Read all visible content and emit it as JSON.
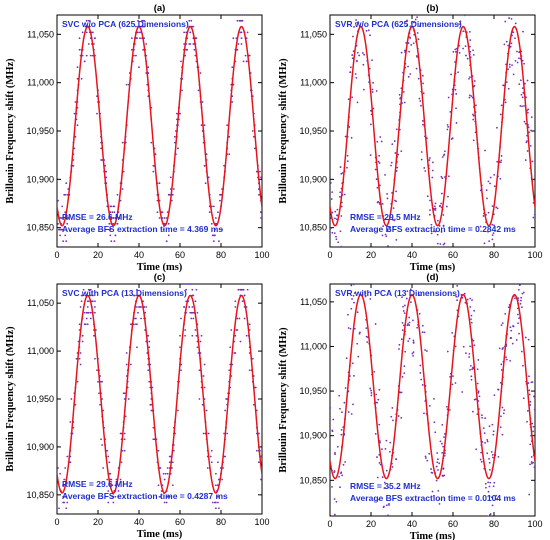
{
  "colors": {
    "fit_line": "#e8141c",
    "points": "#7b2fb8",
    "annotation_text": "#1f2fcf"
  },
  "chart_data": [
    {
      "type": "scatter",
      "panel_tag": "(a)",
      "title": "SVC w/o PCA (625 Dimensions)",
      "annotations": [
        "RMSE = 26.6 MHz",
        "Average BFS extraction time = 4.369 ms"
      ],
      "xlabel": "Time (ms)",
      "ylabel": "Brillouin Frequency shift (MHz)",
      "xlim": [
        0,
        100
      ],
      "ylim": [
        10830,
        11070
      ],
      "xticks": [
        "0",
        "20",
        "40",
        "60",
        "80",
        "100"
      ],
      "yticks": [
        "10,850",
        "10,900",
        "10,950",
        "11,000",
        "11,050"
      ],
      "series": [
        {
          "kind": "line",
          "description": "fitted sinusoid",
          "mean": 10955,
          "amplitude": 103,
          "period": 25,
          "peak_at": 15
        },
        {
          "kind": "scatter",
          "description": "estimated BFS points, quantized",
          "count": 500,
          "noise_mhz": 12
        }
      ]
    },
    {
      "type": "scatter",
      "panel_tag": "(b)",
      "title": "SVR w/o PCA (625 Dimensions)",
      "annotations": [
        "RMSE = 29.5 MHz",
        "Average BFS extraction time = 0.2842 ms"
      ],
      "xlabel": "Time (ms)",
      "ylabel": "Brillouin Frequency shift (MHz)",
      "xlim": [
        0,
        100
      ],
      "ylim": [
        10830,
        11070
      ],
      "xticks": [
        "0",
        "20",
        "40",
        "60",
        "80",
        "100"
      ],
      "yticks": [
        "10,850",
        "10,900",
        "10,950",
        "11,000",
        "11,050"
      ],
      "series": [
        {
          "kind": "line",
          "description": "fitted sinusoid",
          "mean": 10955,
          "amplitude": 103,
          "period": 25,
          "peak_at": 15
        },
        {
          "kind": "scatter",
          "description": "estimated BFS points",
          "count": 500,
          "noise_mhz": 30
        }
      ]
    },
    {
      "type": "scatter",
      "panel_tag": "(c)",
      "title": "SVC with PCA (13 Dimensions)",
      "annotations": [
        "RMSE = 29.6 MHz",
        "Average BFS extraction time = 0.4287 ms"
      ],
      "xlabel": "Time (ms)",
      "ylabel": "Brillouin Frequency shift (MHz)",
      "xlim": [
        0,
        100
      ],
      "ylim": [
        10830,
        11070
      ],
      "xticks": [
        "0",
        "20",
        "40",
        "60",
        "80",
        "100"
      ],
      "yticks": [
        "10,850",
        "10,900",
        "10,950",
        "11,000",
        "11,050"
      ],
      "series": [
        {
          "kind": "line",
          "description": "fitted sinusoid",
          "mean": 10955,
          "amplitude": 103,
          "period": 25,
          "peak_at": 15
        },
        {
          "kind": "scatter",
          "description": "estimated BFS points, quantized",
          "count": 500,
          "noise_mhz": 16
        }
      ]
    },
    {
      "type": "scatter",
      "panel_tag": "(d)",
      "title": "SVR with PCA (13 Dimensions)",
      "annotations": [
        "RMSE = 35.2 MHz",
        "Average BFS extraction time = 0.0104 ms"
      ],
      "xlabel": "Time (ms)",
      "ylabel": "Brillouin Frequency shift (MHz)",
      "xlim": [
        0,
        100
      ],
      "ylim": [
        10810,
        11070
      ],
      "xticks": [
        "0",
        "20",
        "40",
        "60",
        "80",
        "100"
      ],
      "yticks": [
        "10,850",
        "10,900",
        "10,950",
        "11,000",
        "11,050"
      ],
      "series": [
        {
          "kind": "line",
          "description": "fitted sinusoid",
          "mean": 10955,
          "amplitude": 103,
          "period": 25,
          "peak_at": 15
        },
        {
          "kind": "scatter",
          "description": "estimated BFS points",
          "count": 500,
          "noise_mhz": 36
        }
      ]
    }
  ]
}
